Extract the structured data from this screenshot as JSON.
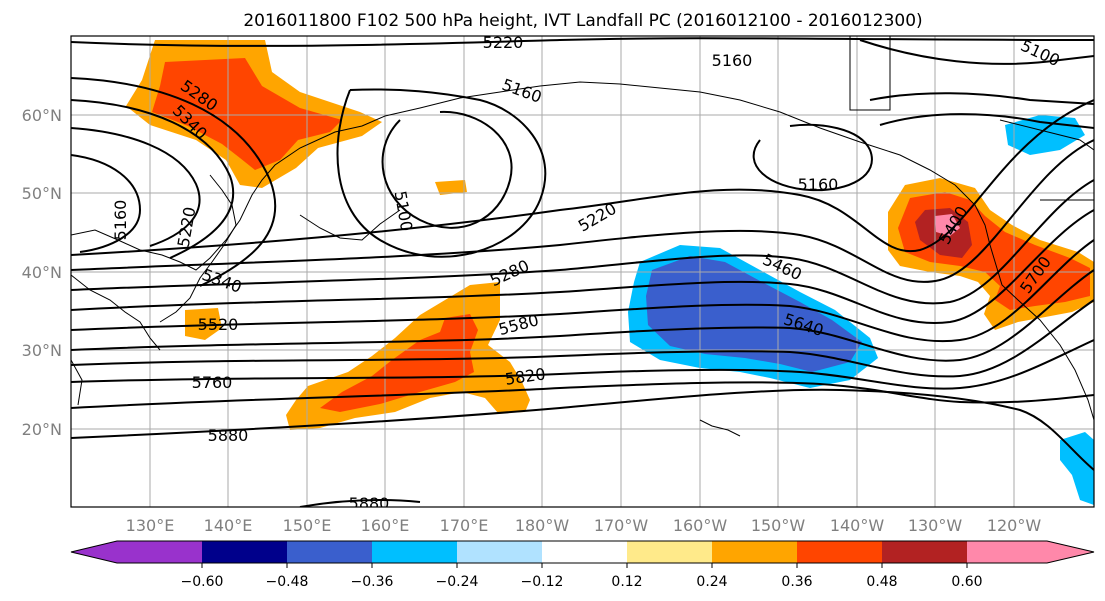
{
  "title": "2016011800 F102 500 hPa height, IVT Landfall PC (2016012100 - 2016012300)",
  "map": {
    "lat_labels": [
      "60°N",
      "50°N",
      "40°N",
      "30°N",
      "20°N"
    ],
    "lon_labels": [
      "130°E",
      "140°E",
      "150°E",
      "160°E",
      "170°E",
      "180°W",
      "170°W",
      "160°W",
      "150°W",
      "140°W",
      "130°W",
      "120°W"
    ],
    "contour_labels": [
      "5220",
      "5160",
      "5100",
      "5280",
      "5340",
      "5160",
      "5160",
      "5100",
      "5220",
      "5160",
      "5280",
      "5220",
      "5340",
      "5520",
      "5580",
      "5460",
      "5640",
      "5400",
      "5700",
      "5760",
      "5820",
      "5880",
      "5880"
    ]
  },
  "colorbar": {
    "tick_labels": [
      "−0.60",
      "−0.48",
      "−0.36",
      "−0.24",
      "−0.12",
      "0.12",
      "0.24",
      "0.36",
      "0.48",
      "0.60"
    ],
    "colors": [
      "#9932cc",
      "#00008b",
      "#3a5fcd",
      "#00bfff",
      "#b0e2ff",
      "#ffffff",
      "#ffea8a",
      "#ffa500",
      "#ff4500",
      "#b22222",
      "#ff88aa"
    ]
  }
}
